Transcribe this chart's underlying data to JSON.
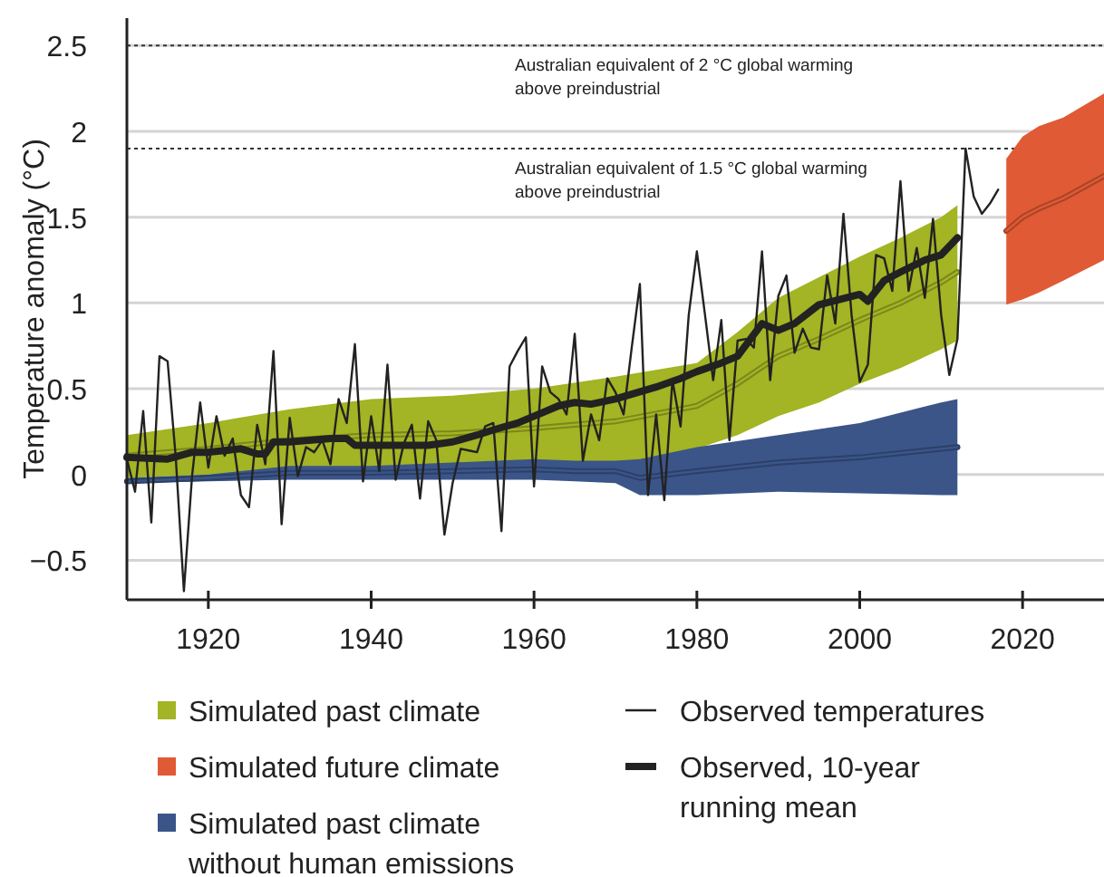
{
  "chart_data": {
    "type": "line",
    "ylabel": "Temperature anomaly (°C)",
    "xlim": [
      1910,
      2030
    ],
    "xticks": [
      1920,
      1940,
      1960,
      1980,
      2000,
      2020
    ],
    "ylim": [
      -0.73,
      2.66
    ],
    "yticks": [
      -0.5,
      0,
      0.5,
      1,
      1.5,
      2,
      2.5
    ],
    "grid": "y",
    "legend": "bottom",
    "ref_lines": [
      {
        "axis": "y",
        "value": 2.5,
        "label": "Australian equivalent of 2 °C global warming above preindustrial",
        "line_style": "dotted",
        "color": "#333333"
      },
      {
        "axis": "y",
        "value": 1.9,
        "label": "Australian equivalent of 1.5 °C global warming above preindustrial",
        "line_style": "dotted",
        "color": "#333333"
      }
    ],
    "series": [
      {
        "name": "Simulated past climate",
        "color": "#a3b424",
        "x": [
          1910,
          1920,
          1930,
          1940,
          1950,
          1960,
          1970,
          1980,
          1985,
          1990,
          1995,
          2000,
          2005,
          2010,
          2012
        ],
        "values": [
          0.11,
          0.15,
          0.2,
          0.23,
          0.24,
          0.27,
          0.31,
          0.4,
          0.53,
          0.69,
          0.79,
          0.9,
          1.0,
          1.12,
          1.18
        ],
        "lower": [
          -0.02,
          0.0,
          0.02,
          0.02,
          0.02,
          0.04,
          0.05,
          0.15,
          0.23,
          0.34,
          0.42,
          0.53,
          0.62,
          0.73,
          0.78
        ],
        "upper": [
          0.23,
          0.3,
          0.38,
          0.44,
          0.46,
          0.5,
          0.57,
          0.65,
          0.83,
          1.03,
          1.15,
          1.27,
          1.38,
          1.5,
          1.57
        ]
      },
      {
        "name": "Simulated future climate",
        "color": "#e05a35",
        "x": [
          2018,
          2020,
          2022,
          2025,
          2030
        ],
        "values": [
          1.42,
          1.5,
          1.55,
          1.61,
          1.74
        ],
        "lower": [
          0.99,
          1.02,
          1.06,
          1.13,
          1.25
        ],
        "upper": [
          1.84,
          1.97,
          2.03,
          2.08,
          2.22
        ]
      },
      {
        "name": "Simulated past climate without human emissions",
        "color": "#3b5589",
        "x": [
          1910,
          1920,
          1930,
          1940,
          1950,
          1960,
          1965,
          1970,
          1973,
          1980,
          1990,
          2000,
          2010,
          2012
        ],
        "values": [
          -0.04,
          -0.02,
          0.01,
          0.01,
          0.02,
          0.03,
          0.02,
          0.02,
          -0.02,
          0.02,
          0.07,
          0.1,
          0.15,
          0.16
        ],
        "lower": [
          -0.05,
          -0.04,
          -0.03,
          -0.03,
          -0.03,
          -0.03,
          -0.04,
          -0.05,
          -0.12,
          -0.12,
          -0.1,
          -0.11,
          -0.12,
          -0.12
        ],
        "upper": [
          -0.02,
          0.0,
          0.05,
          0.05,
          0.07,
          0.09,
          0.08,
          0.08,
          0.09,
          0.16,
          0.23,
          0.3,
          0.42,
          0.44
        ]
      },
      {
        "name": "Observed temperatures",
        "color": "#222222",
        "x": [
          1910,
          1911,
          1912,
          1913,
          1914,
          1915,
          1916,
          1917,
          1918,
          1919,
          1920,
          1921,
          1922,
          1923,
          1924,
          1925,
          1926,
          1927,
          1928,
          1929,
          1930,
          1931,
          1932,
          1933,
          1934,
          1935,
          1936,
          1937,
          1938,
          1939,
          1940,
          1941,
          1942,
          1943,
          1944,
          1945,
          1946,
          1947,
          1948,
          1949,
          1950,
          1951,
          1952,
          1953,
          1954,
          1955,
          1956,
          1957,
          1958,
          1959,
          1960,
          1961,
          1962,
          1963,
          1964,
          1965,
          1966,
          1967,
          1968,
          1969,
          1970,
          1971,
          1972,
          1973,
          1974,
          1975,
          1976,
          1977,
          1978,
          1979,
          1980,
          1981,
          1982,
          1983,
          1984,
          1985,
          1986,
          1987,
          1988,
          1989,
          1990,
          1991,
          1992,
          1993,
          1994,
          1995,
          1996,
          1997,
          1998,
          1999,
          2000,
          2001,
          2002,
          2003,
          2004,
          2005,
          2006,
          2007,
          2008,
          2009,
          2010,
          2011,
          2012,
          2013,
          2014,
          2015,
          2016,
          2017
        ],
        "values": [
          0.09,
          -0.1,
          0.37,
          -0.28,
          0.69,
          0.66,
          0.1,
          -0.68,
          -0.01,
          0.42,
          0.04,
          0.34,
          0.11,
          0.21,
          -0.12,
          -0.19,
          0.29,
          0.06,
          0.72,
          -0.29,
          0.33,
          -0.01,
          0.16,
          0.13,
          0.2,
          0.06,
          0.44,
          0.3,
          0.76,
          -0.04,
          0.34,
          0.02,
          0.64,
          -0.03,
          0.18,
          0.29,
          -0.14,
          0.31,
          0.2,
          -0.35,
          -0.05,
          0.15,
          0.14,
          0.13,
          0.28,
          0.3,
          -0.33,
          0.63,
          0.72,
          0.8,
          -0.07,
          0.63,
          0.48,
          0.44,
          0.35,
          0.82,
          0.08,
          0.35,
          0.2,
          0.56,
          0.48,
          0.35,
          0.74,
          1.11,
          -0.12,
          0.35,
          -0.15,
          0.55,
          0.28,
          0.93,
          1.3,
          0.93,
          0.55,
          0.9,
          0.2,
          0.78,
          0.79,
          0.74,
          1.3,
          0.55,
          1.04,
          1.16,
          0.71,
          0.85,
          0.74,
          0.73,
          1.16,
          0.88,
          1.52,
          0.93,
          0.54,
          0.64,
          1.28,
          1.26,
          1.07,
          1.71,
          1.07,
          1.32,
          1.03,
          1.49,
          0.93,
          0.58,
          0.79,
          1.9,
          1.62,
          1.52,
          1.58,
          1.66
        ]
      },
      {
        "name": "Observed, 10-year running mean",
        "color": "#222222",
        "x": [
          1910,
          1915,
          1918,
          1920,
          1924,
          1926,
          1927,
          1928,
          1930,
          1935,
          1937,
          1938,
          1940,
          1945,
          1947,
          1950,
          1953,
          1955,
          1958,
          1960,
          1963,
          1965,
          1967,
          1970,
          1975,
          1978,
          1980,
          1983,
          1985,
          1988,
          1990,
          1992,
          1995,
          2000,
          2001,
          2003,
          2005,
          2008,
          2010,
          2012
        ],
        "values": [
          0.1,
          0.09,
          0.13,
          0.13,
          0.15,
          0.12,
          0.12,
          0.19,
          0.19,
          0.21,
          0.21,
          0.17,
          0.17,
          0.17,
          0.17,
          0.19,
          0.23,
          0.26,
          0.3,
          0.34,
          0.4,
          0.42,
          0.41,
          0.44,
          0.51,
          0.56,
          0.6,
          0.65,
          0.69,
          0.88,
          0.84,
          0.88,
          0.99,
          1.05,
          1.01,
          1.13,
          1.18,
          1.25,
          1.28,
          1.38
        ]
      }
    ]
  }
}
